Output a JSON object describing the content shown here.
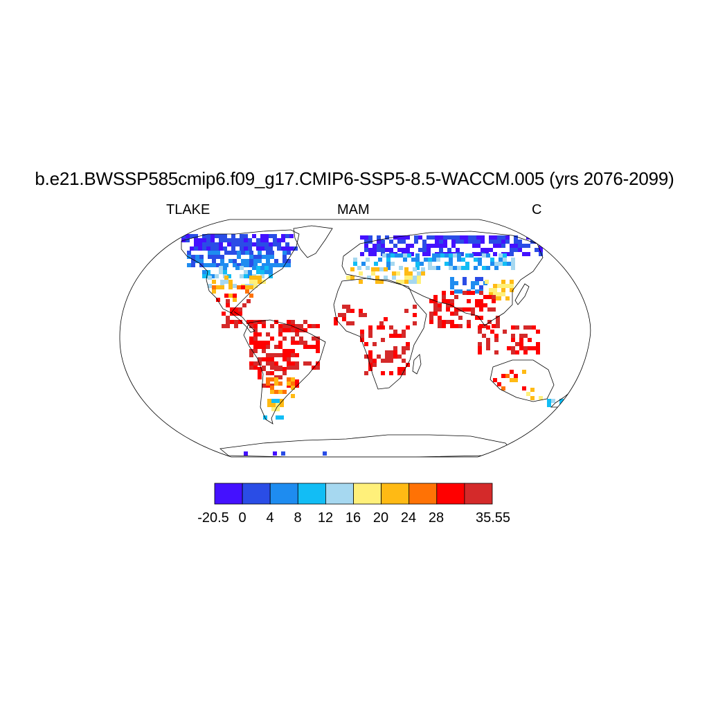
{
  "title": "b.e21.BWSSP585cmip6.f09_g17.CMIP6-SSP5-8.5-WACCM.005 (yrs 2076-2099)",
  "left_label": "TLAKE",
  "center_label": "MAM",
  "right_label": "C",
  "colorbar": {
    "colors": [
      "#4411ff",
      "#2a4de6",
      "#1e8cf0",
      "#12bdf5",
      "#a6d8f0",
      "#fff07a",
      "#ffba14",
      "#ff7205",
      "#ff0000",
      "#d42a2a"
    ],
    "tick_labels": [
      "-20.5",
      "0",
      "4",
      "8",
      "12",
      "16",
      "20",
      "24",
      "28",
      "35.55"
    ]
  }
}
